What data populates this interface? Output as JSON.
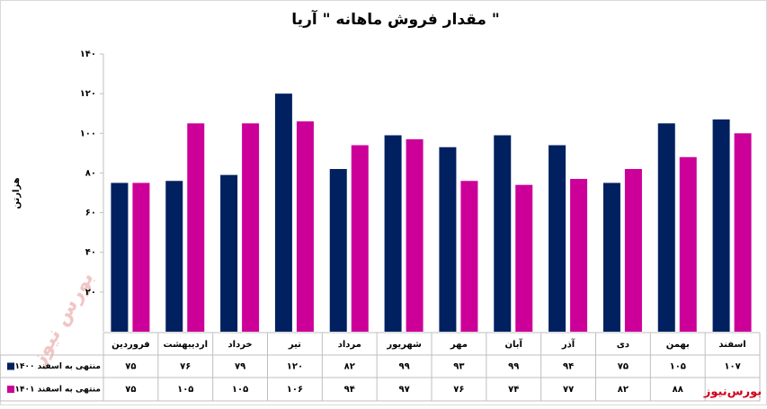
{
  "chart_data": {
    "type": "bar",
    "title": "مقدار فروش ماهانه \" آریا \"",
    "y_label": "هزارتن",
    "categories": [
      "فروردین",
      "اردیبهشت",
      "خرداد",
      "تیر",
      "مرداد",
      "شهریور",
      "مهر",
      "آبان",
      "آذر",
      "دی",
      "بهمن",
      "اسفند"
    ],
    "series": [
      {
        "name": "منتهی به اسفند ۱۴۰۰",
        "color": "#002060",
        "values": [
          75,
          76,
          79,
          120,
          82,
          99,
          93,
          99,
          94,
          75,
          105,
          107
        ],
        "value_labels": [
          "۷۵",
          "۷۶",
          "۷۹",
          "۱۲۰",
          "۸۲",
          "۹۹",
          "۹۳",
          "۹۹",
          "۹۴",
          "۷۵",
          "۱۰۵",
          "۱۰۷"
        ]
      },
      {
        "name": "منتهی به اسفند ۱۴۰۱",
        "color": "#cc0099",
        "values": [
          75,
          105,
          105,
          106,
          94,
          97,
          76,
          74,
          77,
          82,
          88,
          100
        ],
        "value_labels": [
          "۷۵",
          "۱۰۵",
          "۱۰۵",
          "۱۰۶",
          "۹۴",
          "۹۷",
          "۷۶",
          "۷۴",
          "۷۷",
          "۸۲",
          "۸۸",
          null
        ]
      }
    ],
    "ylim": [
      0,
      140
    ],
    "yticks": [
      {
        "value": 20,
        "label": "۲۰"
      },
      {
        "value": 40,
        "label": "۴۰"
      },
      {
        "value": 60,
        "label": "۶۰"
      },
      {
        "value": 80,
        "label": "۸۰"
      },
      {
        "value": 100,
        "label": "۱۰۰"
      },
      {
        "value": 120,
        "label": "۱۲۰"
      },
      {
        "value": 140,
        "label": "۱۴۰"
      }
    ],
    "grid": false,
    "watermark": "بورس نیوز",
    "logo": "بورس‌نیوز"
  }
}
